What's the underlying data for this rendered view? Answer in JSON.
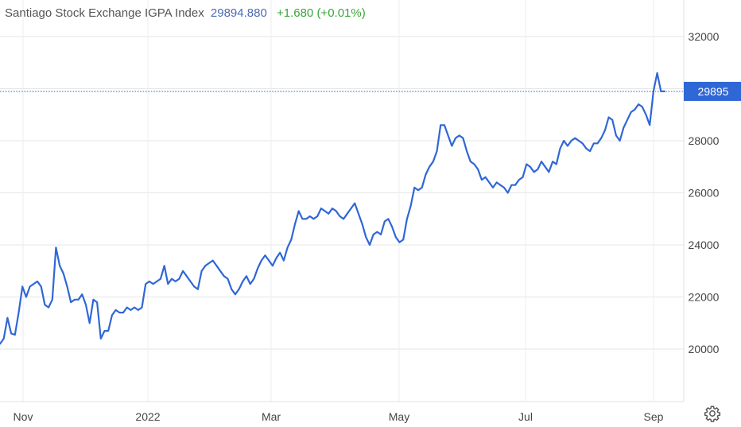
{
  "header": {
    "title": "Santiago Stock Exchange IGPA Index",
    "price": "29894.880",
    "change": "+1.680",
    "change_pct": "(+0.01%)"
  },
  "price_tag": "29895",
  "colors": {
    "line": "#2f67d6",
    "grid": "#e6e6e6",
    "tag": "#2f67d6",
    "change": "#3aa53a",
    "price": "#4a6bb5"
  },
  "settings_icon": "gear-icon",
  "chart_data": {
    "type": "line",
    "title": "Santiago Stock Exchange IGPA Index",
    "xlabel": "",
    "ylabel": "",
    "x_tick_labels": [
      "Nov",
      "2022",
      "Mar",
      "May",
      "Jul",
      "Sep"
    ],
    "y_ticks": [
      20000,
      22000,
      24000,
      26000,
      28000,
      30000,
      32000
    ],
    "y_tick_labels": [
      "20000",
      "22000",
      "24000",
      "26000",
      "28000",
      "32000"
    ],
    "ylim": [
      18200,
      32800
    ],
    "grid": true,
    "last_value": 29895,
    "series": [
      {
        "values": [
          20200,
          20400,
          21200,
          20600,
          20550,
          21400,
          22400,
          22000,
          22400,
          22500,
          22600,
          22400,
          21700,
          21600,
          21900,
          23900,
          23200,
          22900,
          22400,
          21800,
          21900,
          21900,
          22100,
          21700,
          21000,
          21900,
          21800,
          20400,
          20700,
          20700,
          21300,
          21500,
          21400,
          21400,
          21600,
          21500,
          21600,
          21500,
          21600,
          22500,
          22600,
          22500,
          22600,
          22700,
          23200,
          22500,
          22700,
          22600,
          22700,
          23000,
          22800,
          22600,
          22400,
          22300,
          23000,
          23200,
          23300,
          23400,
          23200,
          23000,
          22800,
          22700,
          22300,
          22100,
          22300,
          22600,
          22800,
          22500,
          22700,
          23100,
          23400,
          23600,
          23400,
          23200,
          23500,
          23700,
          23400,
          23900,
          24200,
          24800,
          25300,
          25000,
          25000,
          25100,
          25000,
          25100,
          25400,
          25300,
          25200,
          25400,
          25300,
          25100,
          25000,
          25200,
          25400,
          25600,
          25200,
          24800,
          24300,
          24000,
          24400,
          24500,
          24400,
          24900,
          25000,
          24700,
          24300,
          24100,
          24200,
          25000,
          25500,
          26200,
          26100,
          26200,
          26700,
          27000,
          27200,
          27600,
          28600,
          28600,
          28200,
          27800,
          28100,
          28200,
          28100,
          27600,
          27200,
          27100,
          26900,
          26500,
          26600,
          26400,
          26200,
          26400,
          26300,
          26200,
          26000,
          26300,
          26300,
          26500,
          26600,
          27100,
          27000,
          26800,
          26900,
          27200,
          27000,
          26800,
          27200,
          27100,
          27700,
          28000,
          27800,
          28000,
          28100,
          28000,
          27900,
          27700,
          27600,
          27900,
          27900,
          28100,
          28400,
          28900,
          28800,
          28200,
          28000,
          28500,
          28800,
          29100,
          29200,
          29400,
          29300,
          29000,
          28600,
          29900,
          30600,
          29900,
          29895
        ]
      }
    ]
  }
}
